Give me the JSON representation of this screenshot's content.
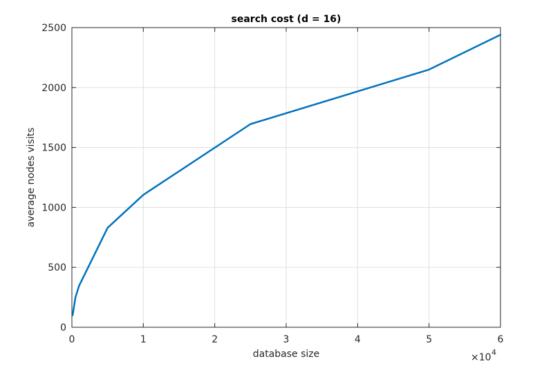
{
  "chart_data": {
    "type": "line",
    "title": "search cost (d = 16)",
    "xlabel": "database size",
    "ylabel": "average nodes visits",
    "x_exponent_label": "×10",
    "x_exponent_power": "4",
    "xlim": [
      0,
      60000
    ],
    "ylim": [
      0,
      2500
    ],
    "x_ticks": [
      0,
      10000,
      20000,
      30000,
      40000,
      50000,
      60000
    ],
    "x_tick_labels": [
      "0",
      "1",
      "2",
      "3",
      "4",
      "5",
      "6"
    ],
    "y_ticks": [
      0,
      500,
      1000,
      1500,
      2000,
      2500
    ],
    "y_tick_labels": [
      "0",
      "500",
      "1000",
      "1500",
      "2000",
      "2500"
    ],
    "grid": true,
    "series": [
      {
        "color": "#0072bd",
        "x": [
          100,
          500,
          1000,
          5000,
          10000,
          25000,
          50000,
          60000
        ],
        "y": [
          100,
          250,
          345,
          830,
          1105,
          1695,
          2150,
          2440
        ]
      }
    ]
  }
}
